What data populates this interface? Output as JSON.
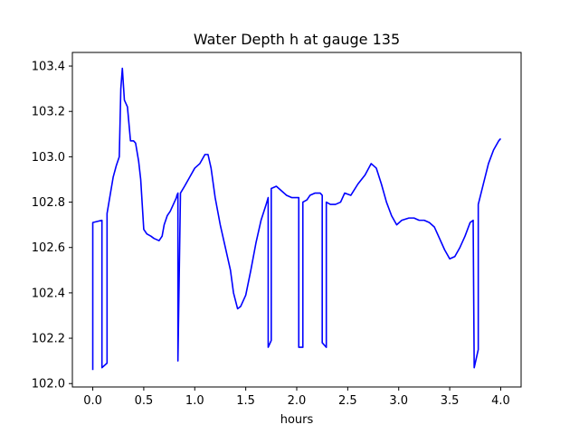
{
  "chart_data": {
    "type": "line",
    "title": "Water Depth h at gauge 135",
    "xlabel": "hours",
    "ylabel": "",
    "xlim": [
      -0.2,
      4.2
    ],
    "ylim": [
      101.985,
      103.46
    ],
    "xticks": [
      0.0,
      0.5,
      1.0,
      1.5,
      2.0,
      2.5,
      3.0,
      3.5,
      4.0
    ],
    "xtick_labels": [
      "0.0",
      "0.5",
      "1.0",
      "1.5",
      "2.0",
      "2.5",
      "3.0",
      "3.5",
      "4.0"
    ],
    "yticks": [
      102.0,
      102.2,
      102.4,
      102.6,
      102.8,
      103.0,
      103.2,
      103.4
    ],
    "ytick_labels": [
      "102.0",
      "102.2",
      "102.4",
      "102.6",
      "102.8",
      "103.0",
      "103.2",
      "103.4"
    ],
    "grid": false,
    "line_color": "#0000ff",
    "series": [
      {
        "x": [
          0.0,
          0.0,
          0.09,
          0.09,
          0.14,
          0.14,
          0.17,
          0.2,
          0.23,
          0.26,
          0.275,
          0.29,
          0.31,
          0.34,
          0.37,
          0.4,
          0.42,
          0.45,
          0.47,
          0.5,
          0.53,
          0.57,
          0.6,
          0.65,
          0.68,
          0.7,
          0.73,
          0.76,
          0.8,
          0.82,
          0.825,
          0.835,
          0.835,
          0.86,
          0.9,
          0.95,
          1.0,
          1.05,
          1.1,
          1.13,
          1.16,
          1.2,
          1.25,
          1.3,
          1.35,
          1.38,
          1.42,
          1.45,
          1.5,
          1.55,
          1.6,
          1.65,
          1.7,
          1.72,
          1.72,
          1.75,
          1.75,
          1.8,
          1.85,
          1.9,
          1.95,
          2.0,
          2.02,
          2.02,
          2.06,
          2.06,
          2.1,
          2.13,
          2.18,
          2.23,
          2.25,
          2.25,
          2.29,
          2.29,
          2.33,
          2.38,
          2.43,
          2.47,
          2.53,
          2.6,
          2.67,
          2.73,
          2.78,
          2.83,
          2.88,
          2.93,
          2.98,
          3.03,
          3.1,
          3.15,
          3.2,
          3.25,
          3.3,
          3.35,
          3.4,
          3.45,
          3.5,
          3.55,
          3.6,
          3.65,
          3.7,
          3.73,
          3.74,
          3.74,
          3.78,
          3.78,
          3.83,
          3.88,
          3.93,
          3.98,
          4.0
        ],
        "y": [
          102.06,
          102.71,
          102.72,
          102.07,
          102.09,
          102.75,
          102.83,
          102.91,
          102.96,
          103.0,
          103.3,
          103.39,
          103.25,
          103.22,
          103.07,
          103.07,
          103.06,
          102.98,
          102.9,
          102.68,
          102.66,
          102.65,
          102.64,
          102.63,
          102.65,
          102.7,
          102.74,
          102.76,
          102.8,
          102.82,
          102.83,
          102.84,
          102.1,
          102.84,
          102.87,
          102.91,
          102.95,
          102.97,
          103.01,
          103.01,
          102.95,
          102.82,
          102.7,
          102.6,
          102.5,
          102.4,
          102.33,
          102.34,
          102.39,
          102.5,
          102.62,
          102.72,
          102.79,
          102.82,
          102.16,
          102.19,
          102.86,
          102.87,
          102.85,
          102.83,
          102.82,
          102.82,
          102.82,
          102.16,
          102.16,
          102.8,
          102.81,
          102.83,
          102.84,
          102.84,
          102.83,
          102.18,
          102.16,
          102.8,
          102.79,
          102.79,
          102.8,
          102.84,
          102.83,
          102.88,
          102.92,
          102.97,
          102.95,
          102.88,
          102.8,
          102.74,
          102.7,
          102.72,
          102.73,
          102.73,
          102.72,
          102.72,
          102.71,
          102.69,
          102.64,
          102.59,
          102.55,
          102.56,
          102.6,
          102.65,
          102.71,
          102.72,
          102.07,
          102.07,
          102.15,
          102.79,
          102.88,
          102.97,
          103.03,
          103.07,
          103.08
        ]
      }
    ]
  }
}
